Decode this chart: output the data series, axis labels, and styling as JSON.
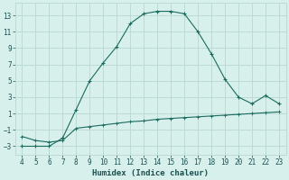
{
  "x": [
    4,
    5,
    6,
    7,
    8,
    9,
    10,
    11,
    12,
    13,
    14,
    15,
    16,
    17,
    18,
    19,
    20,
    21,
    22,
    23
  ],
  "y_upper": [
    -3,
    -3,
    -3,
    -2.0,
    1.5,
    5.0,
    7.2,
    9.2,
    12.0,
    13.2,
    13.5,
    13.5,
    13.2,
    11.0,
    8.3,
    5.2,
    3.0,
    2.2,
    3.2,
    2.2
  ],
  "y_lower": [
    -1.8,
    -2.3,
    -2.5,
    -2.3,
    -0.8,
    -0.6,
    -0.4,
    -0.2,
    0.0,
    0.1,
    0.3,
    0.4,
    0.5,
    0.6,
    0.7,
    0.8,
    0.9,
    1.0,
    1.1,
    1.2
  ],
  "line_color": "#1a6b5e",
  "bg_color": "#d8f0ec",
  "grid_color": "#b8d8d2",
  "xlabel": "Humidex (Indice chaleur)",
  "yticks": [
    -3,
    -1,
    1,
    3,
    5,
    7,
    9,
    11,
    13
  ],
  "xticks": [
    4,
    5,
    6,
    7,
    8,
    9,
    10,
    11,
    12,
    13,
    14,
    15,
    16,
    17,
    18,
    19,
    20,
    21,
    22,
    23
  ],
  "xlim": [
    3.5,
    23.5
  ],
  "ylim": [
    -4.0,
    14.5
  ],
  "font_color": "#1a5050",
  "tick_font_size": 5.5,
  "xlabel_font_size": 6.5
}
